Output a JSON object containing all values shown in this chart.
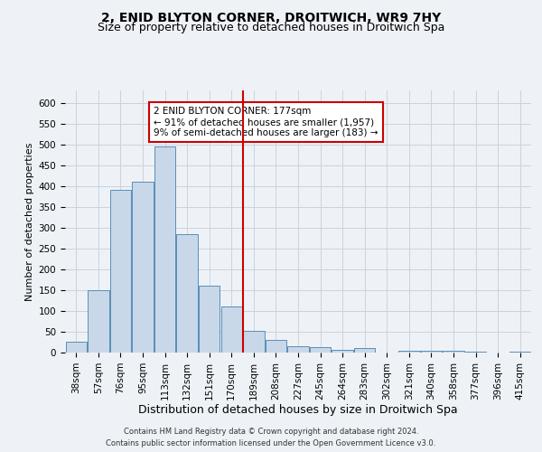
{
  "title": "2, ENID BLYTON CORNER, DROITWICH, WR9 7HY",
  "subtitle": "Size of property relative to detached houses in Droitwich Spa",
  "xlabel": "Distribution of detached houses by size in Droitwich Spa",
  "ylabel": "Number of detached properties",
  "footer_line1": "Contains HM Land Registry data © Crown copyright and database right 2024.",
  "footer_line2": "Contains public sector information licensed under the Open Government Licence v3.0.",
  "categories": [
    "38sqm",
    "57sqm",
    "76sqm",
    "95sqm",
    "113sqm",
    "132sqm",
    "151sqm",
    "170sqm",
    "189sqm",
    "208sqm",
    "227sqm",
    "245sqm",
    "264sqm",
    "283sqm",
    "302sqm",
    "321sqm",
    "340sqm",
    "358sqm",
    "377sqm",
    "396sqm",
    "415sqm"
  ],
  "values": [
    25,
    150,
    390,
    410,
    495,
    285,
    160,
    110,
    53,
    30,
    15,
    12,
    7,
    10,
    0,
    4,
    4,
    5,
    3,
    0,
    3
  ],
  "bar_color": "#c8d8e8",
  "bar_edge_color": "#5b8db8",
  "vline_x": 7.5,
  "vline_color": "#cc0000",
  "annotation_text": "2 ENID BLYTON CORNER: 177sqm\n← 91% of detached houses are smaller (1,957)\n9% of semi-detached houses are larger (183) →",
  "annotation_box_color": "#cc0000",
  "annotation_box_fill": "white",
  "ylim": [
    0,
    630
  ],
  "yticks": [
    0,
    50,
    100,
    150,
    200,
    250,
    300,
    350,
    400,
    450,
    500,
    550,
    600
  ],
  "grid_color": "#c8d4e0",
  "background_color": "#eef2f7",
  "title_fontsize": 10,
  "subtitle_fontsize": 9,
  "ylabel_fontsize": 8,
  "xlabel_fontsize": 9,
  "tick_fontsize": 7.5,
  "footer_fontsize": 6,
  "annotation_fontsize": 7.5
}
